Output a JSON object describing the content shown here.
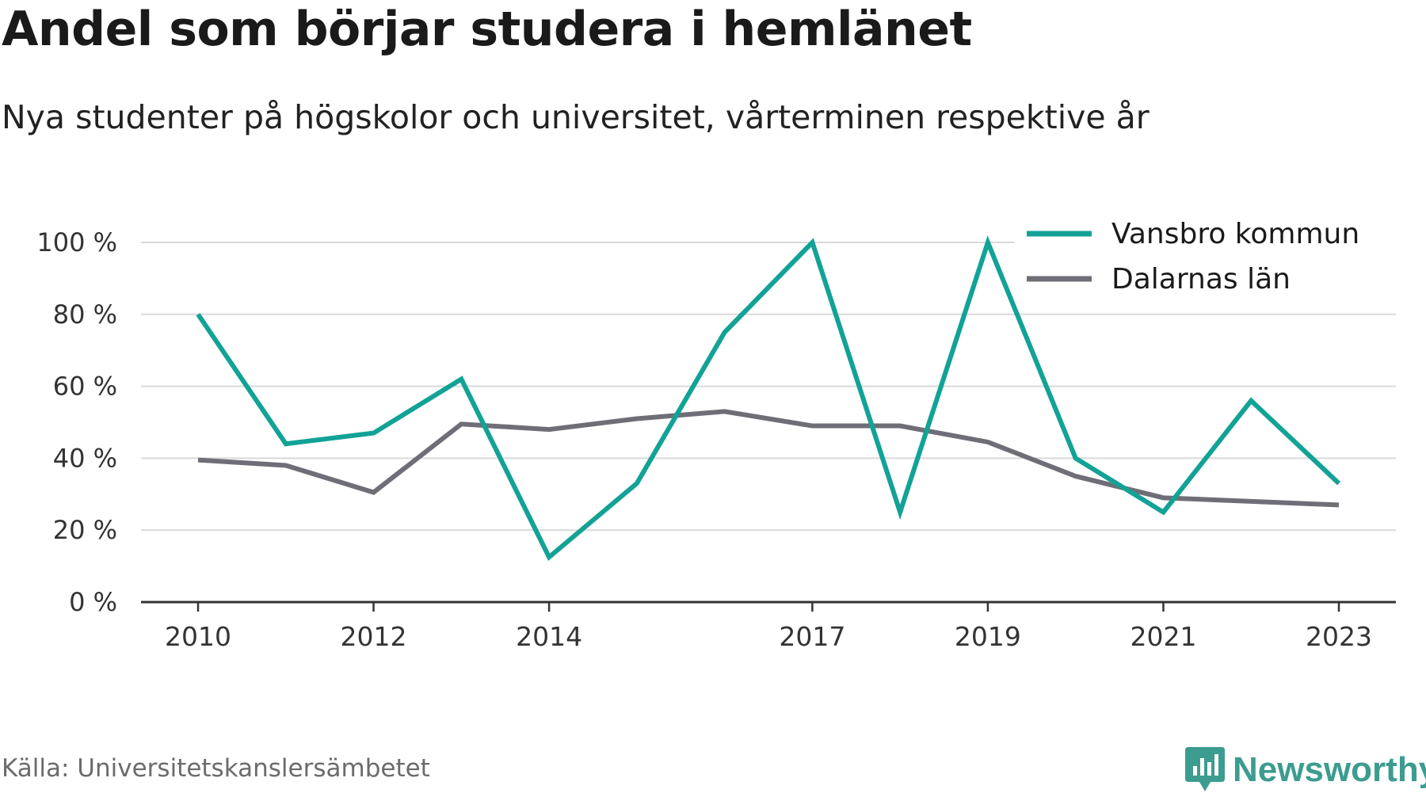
{
  "title": "Andel som börjar studera i hemlänet",
  "subtitle": "Nya studenter på högskolor och universitet, vårterminen respektive år",
  "source": "Källa: Universitetskanslersämbetet",
  "brand": "Newsworthy",
  "colors": {
    "accent": "#12a296",
    "secondary": "#6f6e76",
    "grid": "#d9d9d9",
    "brand": "#3c9c8f"
  },
  "chart_data": {
    "type": "line",
    "x": [
      2010,
      2011,
      2012,
      2013,
      2014,
      2015,
      2016,
      2017,
      2018,
      2019,
      2020,
      2021,
      2022,
      2023
    ],
    "x_tick_labels": [
      "2010",
      "2012",
      "2014",
      "2017",
      "2019",
      "2021",
      "2023"
    ],
    "y_ticks": [
      0,
      20,
      40,
      60,
      80,
      100
    ],
    "y_tick_labels": [
      "0 %",
      "20 %",
      "40 %",
      "60 %",
      "80 %",
      "100 %"
    ],
    "ylim": [
      0,
      100
    ],
    "grid": true,
    "legend_position": "top-right",
    "series": [
      {
        "name": "Vansbro kommun",
        "color": "#12a296",
        "values": [
          80,
          44,
          47,
          62,
          12.5,
          33,
          75,
          100,
          25,
          100,
          40,
          25,
          56,
          33
        ]
      },
      {
        "name": "Dalarnas län",
        "color": "#6f6e76",
        "values": [
          39.5,
          38,
          30.5,
          49.5,
          48,
          51,
          53,
          49,
          49,
          44.5,
          35,
          29,
          28,
          27
        ]
      }
    ]
  }
}
